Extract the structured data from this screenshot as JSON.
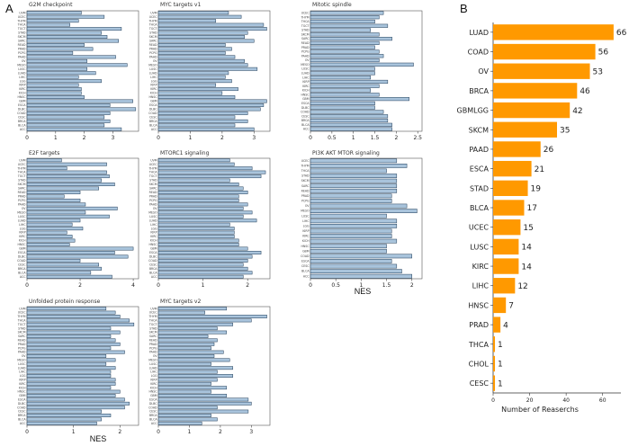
{
  "panel_a": {
    "letter": "A",
    "nes_label": "NES"
  },
  "panel_b": {
    "letter": "B"
  },
  "colors": {
    "blue_bar": "#a9c4dc",
    "blue_edge": "#1e3a56",
    "orange_bar": "#ff9900"
  },
  "chart_data": [
    {
      "type": "bar",
      "title": "G2M checkpoint",
      "categories": [
        "UVM",
        "UCEC",
        "THYM",
        "THCA",
        "TGCT",
        "STAD",
        "SKCM",
        "SARC",
        "READ",
        "PRAD",
        "PCPG",
        "PAAD",
        "OV",
        "MESO",
        "LUSC",
        "LUAD",
        "LIHC",
        "LGG",
        "KIRP",
        "KIRC",
        "KICH",
        "HNSC",
        "GBM",
        "ESCA",
        "DLBC",
        "COAD",
        "CESC",
        "BRCA",
        "BLCA",
        "ACC"
      ],
      "values": [
        1.9,
        2.7,
        1.8,
        1.5,
        3.3,
        2.6,
        2.8,
        3.2,
        2.0,
        2.3,
        1.6,
        3.1,
        2.1,
        3.5,
        2.1,
        2.4,
        1.8,
        2.6,
        1.8,
        1.9,
        1.9,
        2.0,
        3.7,
        2.9,
        3.8,
        2.9,
        2.7,
        2.9,
        2.7,
        3.3
      ],
      "xticks": [
        0,
        1,
        2,
        3
      ],
      "xlim": [
        0,
        3.9
      ]
    },
    {
      "type": "bar",
      "title": "E2F targets",
      "categories": [
        "UVM",
        "UCEC",
        "THYM",
        "THCA",
        "TGCT",
        "STAD",
        "SKCM",
        "SARC",
        "READ",
        "PRAD",
        "PCPG",
        "PAAD",
        "OV",
        "MESO",
        "LUSC",
        "LUAD",
        "LIHC",
        "LGG",
        "KIRP",
        "KIRC",
        "KICH",
        "HNSC",
        "GBM",
        "ESCA",
        "DLBC",
        "COAD",
        "CESC",
        "BRCA",
        "BLCA",
        "ACC"
      ],
      "values": [
        1.3,
        3.0,
        1.5,
        3.0,
        3.1,
        2.8,
        3.3,
        2.7,
        2.0,
        1.4,
        2.0,
        2.2,
        3.4,
        2.2,
        3.1,
        2.0,
        1.7,
        2.1,
        1.5,
        1.7,
        1.8,
        1.6,
        4.0,
        3.3,
        3.8,
        2.0,
        2.7,
        2.8,
        2.4,
        3.2
      ],
      "xticks": [
        0,
        2,
        4
      ],
      "xlim": [
        0,
        4.2
      ]
    },
    {
      "type": "bar",
      "title": "Unfolded protein response",
      "categories": [
        "UVM",
        "UCEC",
        "THYM",
        "THCA",
        "TGCT",
        "STAD",
        "SKCM",
        "SARC",
        "READ",
        "PRAD",
        "PCPG",
        "PAAD",
        "OV",
        "MESO",
        "LUSC",
        "LUAD",
        "LIHC",
        "LGG",
        "KIRP",
        "KIRC",
        "KICH",
        "HNSC",
        "GBM",
        "ESCA",
        "DLBC",
        "COAD",
        "CESC",
        "BRCA",
        "BLCA",
        "ACC"
      ],
      "values": [
        1.7,
        1.9,
        2.0,
        2.2,
        2.3,
        1.8,
        2.0,
        1.8,
        1.9,
        2.0,
        1.8,
        2.1,
        1.7,
        1.9,
        1.7,
        1.9,
        1.8,
        1.8,
        1.9,
        1.9,
        1.8,
        2.0,
        1.9,
        2.1,
        2.2,
        2.1,
        1.6,
        1.8,
        1.6,
        1.5
      ],
      "xticks": [
        0,
        1,
        2
      ],
      "xlim": [
        0,
        2.4
      ]
    },
    {
      "type": "bar",
      "title": "MYC targets v1",
      "categories": [
        "UVM",
        "UCEC",
        "THYM",
        "THCA",
        "TGCT",
        "STAD",
        "SKCM",
        "SARC",
        "READ",
        "PRAD",
        "PCPG",
        "PAAD",
        "OV",
        "MESO",
        "LUSC",
        "LUAD",
        "LIHC",
        "LGG",
        "KIRP",
        "KIRC",
        "KICH",
        "HNSC",
        "GBM",
        "ESCA",
        "DLBC",
        "COAD",
        "CESC",
        "BRCA",
        "BLCA",
        "ACC"
      ],
      "values": [
        2.2,
        2.6,
        1.8,
        3.3,
        3.4,
        2.8,
        2.7,
        3.0,
        2.1,
        2.3,
        2.1,
        2.4,
        2.7,
        2.8,
        3.1,
        2.2,
        2.1,
        2.3,
        1.8,
        2.5,
        2.0,
        2.4,
        3.4,
        3.3,
        3.2,
        2.8,
        2.4,
        2.8,
        2.4,
        3.0
      ],
      "xticks": [
        0,
        1,
        2,
        3
      ],
      "xlim": [
        0,
        3.5
      ]
    },
    {
      "type": "bar",
      "title": "MTORC1 signaling",
      "categories": [
        "UVM",
        "UCEC",
        "THYM",
        "THCA",
        "TGCT",
        "STAD",
        "SKCM",
        "SARC",
        "READ",
        "PRAD",
        "PCPG",
        "PAAD",
        "OV",
        "MESO",
        "LUSC",
        "LUAD",
        "LIHC",
        "LGG",
        "KIRP",
        "KIRC",
        "KICH",
        "HNSC",
        "GBM",
        "ESCA",
        "DLBC",
        "COAD",
        "CESC",
        "BRCA",
        "BLCA",
        "ACC"
      ],
      "values": [
        1.6,
        1.7,
        2.1,
        2.4,
        2.3,
        1.6,
        1.8,
        1.9,
        2.0,
        1.8,
        1.8,
        2.0,
        1.9,
        2.1,
        1.9,
        2.2,
        1.6,
        1.7,
        1.7,
        1.7,
        1.8,
        1.8,
        2.0,
        2.3,
        2.1,
        2.0,
        1.9,
        2.0,
        2.1,
        1.9
      ],
      "xticks": [
        0,
        1,
        2
      ],
      "xlim": [
        0,
        2.5
      ]
    },
    {
      "type": "bar",
      "title": "MYC targets v2",
      "categories": [
        "UVM",
        "UCEC",
        "THYM",
        "THCA",
        "TGCT",
        "STAD",
        "SKCM",
        "SARC",
        "READ",
        "PRAD",
        "PCPG",
        "PAAD",
        "OV",
        "MESO",
        "LUSC",
        "LUAD",
        "LIHC",
        "LGG",
        "KIRP",
        "KIRC",
        "KICH",
        "HNSC",
        "GBM",
        "ESCA",
        "DLBC",
        "COAD",
        "CESC",
        "BRCA",
        "BLCA",
        "ACC"
      ],
      "values": [
        2.2,
        1.5,
        3.5,
        3.0,
        2.4,
        1.9,
        2.2,
        1.6,
        1.9,
        1.8,
        1.7,
        2.1,
        1.8,
        2.3,
        1.7,
        2.4,
        1.9,
        2.4,
        1.9,
        1.7,
        2.2,
        1.7,
        2.2,
        2.9,
        3.0,
        1.9,
        2.9,
        1.7,
        1.9,
        1.4
      ],
      "xticks": [
        0,
        1,
        2,
        3
      ],
      "xlim": [
        0,
        3.6
      ]
    },
    {
      "type": "bar",
      "title": "Mitotic spindle",
      "categories": [
        "UCEC",
        "THYM",
        "THCA",
        "TGCT",
        "STAD",
        "SKCM",
        "SARC",
        "READ",
        "PRAD",
        "PCPG",
        "PAAD",
        "OV",
        "MESO",
        "LUSC",
        "LUAD",
        "LIHC",
        "KIRP",
        "KIRC",
        "KICH",
        "HNSC",
        "GBM",
        "ESCA",
        "DLBC",
        "COAD",
        "CESC",
        "BRCA",
        "BLCA",
        "ACC"
      ],
      "values": [
        1.7,
        1.6,
        1.5,
        1.8,
        1.4,
        1.6,
        1.9,
        1.6,
        1.5,
        1.6,
        1.7,
        1.6,
        2.4,
        1.5,
        1.5,
        1.4,
        1.8,
        1.6,
        1.4,
        1.6,
        2.3,
        1.5,
        1.5,
        1.7,
        1.8,
        1.8,
        1.9,
        1.9
      ],
      "xticks": [
        0,
        0.5,
        1,
        1.5,
        2,
        2.5
      ],
      "xlim": [
        0,
        2.6
      ]
    },
    {
      "type": "bar",
      "title": "PI3K AKT MTOR signaling",
      "categories": [
        "UCEC",
        "THYM",
        "THCA",
        "STAD",
        "SKCM",
        "SARC",
        "READ",
        "PRAD",
        "PCPG",
        "OV",
        "MESO",
        "LUSC",
        "LIHC",
        "LGG",
        "KIRP",
        "KIRC",
        "KICH",
        "HNSC",
        "GBM",
        "COAD",
        "ESCA",
        "CESC",
        "BLCA",
        "ACC"
      ],
      "values": [
        1.7,
        1.9,
        1.5,
        1.7,
        1.7,
        1.7,
        1.7,
        1.6,
        1.6,
        1.9,
        2.1,
        1.5,
        1.7,
        1.7,
        1.6,
        1.6,
        1.7,
        1.5,
        1.5,
        2.0,
        1.6,
        1.7,
        1.8,
        2.0
      ],
      "xticks": [
        0,
        0.5,
        1,
        1.5,
        2
      ],
      "xlim": [
        0,
        2.2
      ]
    },
    {
      "type": "bar",
      "orientation": "horizontal",
      "categories": [
        "LUAD",
        "COAD",
        "OV",
        "BRCA",
        "GBMLGG",
        "SKCM",
        "PAAD",
        "ESCA",
        "STAD",
        "BLCA",
        "UCEC",
        "LUSC",
        "KIRC",
        "LIHC",
        "HNSC",
        "PRAD",
        "THCA",
        "CHOL",
        "CESC"
      ],
      "values": [
        66,
        56,
        53,
        46,
        42,
        35,
        26,
        21,
        19,
        17,
        15,
        14,
        14,
        12,
        7,
        4,
        1,
        1,
        1
      ],
      "xlabel": "Number of Reaserchs",
      "xticks": [
        0,
        20,
        40,
        60
      ],
      "xlim": [
        0,
        70
      ]
    }
  ]
}
